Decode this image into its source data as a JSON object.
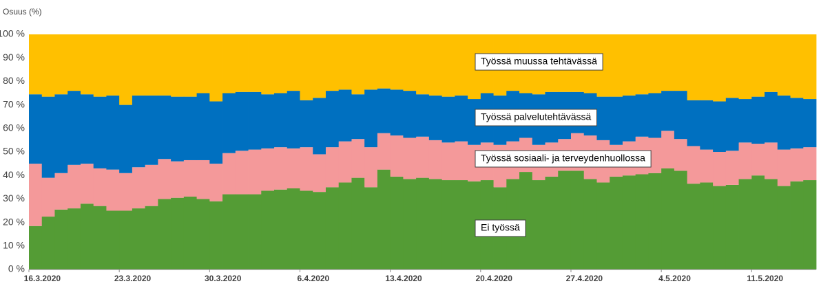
{
  "chart_data": {
    "type": "stacked_bar",
    "y_label": "Osuus (%)",
    "categories": [
      "16.3.2020",
      null,
      null,
      null,
      null,
      null,
      null,
      "23.3.2020",
      null,
      null,
      null,
      null,
      null,
      null,
      "30.3.2020",
      null,
      null,
      null,
      null,
      null,
      null,
      "6.4.2020",
      null,
      null,
      null,
      null,
      null,
      null,
      "13.4.2020",
      null,
      null,
      null,
      null,
      null,
      null,
      "20.4.2020",
      null,
      null,
      null,
      null,
      null,
      null,
      "27.4.2020",
      null,
      null,
      null,
      null,
      null,
      null,
      "4.5.2020",
      null,
      null,
      null,
      null,
      null,
      null,
      "11.5.2020",
      null,
      null,
      null,
      null
    ],
    "series": [
      {
        "name": "Ei työssä",
        "color": "#549c35",
        "values": [
          18.5,
          22.5,
          25.5,
          26,
          28,
          27,
          25,
          25,
          26,
          27,
          30,
          30.5,
          31,
          30,
          29,
          32,
          32,
          32,
          33.5,
          34,
          34.5,
          33.5,
          33,
          35,
          37,
          39,
          35,
          42.5,
          39.5,
          38.5,
          39,
          38.5,
          38,
          38,
          37.5,
          38,
          35,
          38.5,
          41.5,
          38,
          39.5,
          42,
          42,
          38.5,
          37,
          39.5,
          40,
          40.5,
          41,
          43,
          42,
          36.5,
          37,
          35.5,
          36,
          38.5,
          40,
          38.5,
          35.5,
          37.5,
          38
        ]
      },
      {
        "name": "Työssä sosiaali- ja terveydenhuollossa",
        "color": "#f4999a",
        "values": [
          26.5,
          16.5,
          15.5,
          18.5,
          17,
          16,
          17.5,
          16,
          17.5,
          17.5,
          17,
          15.5,
          15.5,
          16.5,
          16,
          17.5,
          18.5,
          19,
          18,
          18,
          17,
          18.5,
          16,
          17,
          17.5,
          16.5,
          17,
          15.5,
          17.5,
          17.5,
          17.5,
          16.5,
          16,
          16.5,
          15.5,
          16,
          18,
          16,
          14.5,
          15,
          14.5,
          13.5,
          16,
          18.5,
          18,
          13.5,
          14.5,
          16,
          15,
          16,
          13.5,
          16,
          14,
          14.5,
          14.5,
          15.5,
          13.5,
          15.5,
          15.5,
          14,
          14
        ]
      },
      {
        "name": "Työssä palvelutehtävässä",
        "color": "#0070c0",
        "values": [
          29.5,
          34.5,
          33.5,
          31.5,
          29.5,
          30.5,
          31.5,
          29,
          30.5,
          29.5,
          27,
          27.5,
          27,
          28.5,
          26.5,
          25.5,
          25,
          24.5,
          23,
          23,
          24.5,
          20,
          24,
          24,
          22,
          19,
          24.5,
          19,
          19.5,
          20,
          18,
          19,
          19.5,
          19.5,
          19.5,
          21,
          21,
          21.5,
          19,
          21.5,
          21.5,
          20,
          17.5,
          18,
          18.5,
          20.5,
          19.5,
          18,
          19,
          17,
          20.5,
          19.5,
          21,
          21.5,
          22.5,
          18.5,
          20,
          21.5,
          23,
          21.5,
          20.5
        ]
      },
      {
        "name": "Työssä muussa tehtävässä",
        "color": "#ffc000",
        "values": [
          25.5,
          26.5,
          25.5,
          24,
          25.5,
          26.5,
          26,
          30,
          26,
          26,
          26,
          26.5,
          26.5,
          25,
          28.5,
          25,
          24.5,
          24.5,
          25.5,
          25,
          24,
          28,
          27,
          24,
          23.5,
          25.5,
          23.5,
          23,
          23.5,
          24,
          25.5,
          26,
          26.5,
          26,
          27.5,
          25,
          26,
          24,
          25,
          25.5,
          24.5,
          24.5,
          24.5,
          25,
          26.5,
          26.5,
          26,
          25.5,
          25,
          24,
          24,
          28,
          28,
          28.5,
          27,
          27.5,
          26.5,
          24.5,
          26,
          27,
          27.5
        ]
      }
    ],
    "ylim": [
      0,
      100
    ],
    "yticks": [
      {
        "value": 0,
        "label": "0 %"
      },
      {
        "value": 10,
        "label": "10 %"
      },
      {
        "value": 20,
        "label": "20 %"
      },
      {
        "value": 30,
        "label": "30 %"
      },
      {
        "value": 40,
        "label": "40 %"
      },
      {
        "value": 50,
        "label": "50 %"
      },
      {
        "value": 60,
        "label": "60 %"
      },
      {
        "value": 70,
        "label": "70 %"
      },
      {
        "value": 80,
        "label": "80 %"
      },
      {
        "value": 90,
        "label": "90 %"
      },
      {
        "value": 100,
        "label": "100 %"
      }
    ],
    "grid": false
  }
}
